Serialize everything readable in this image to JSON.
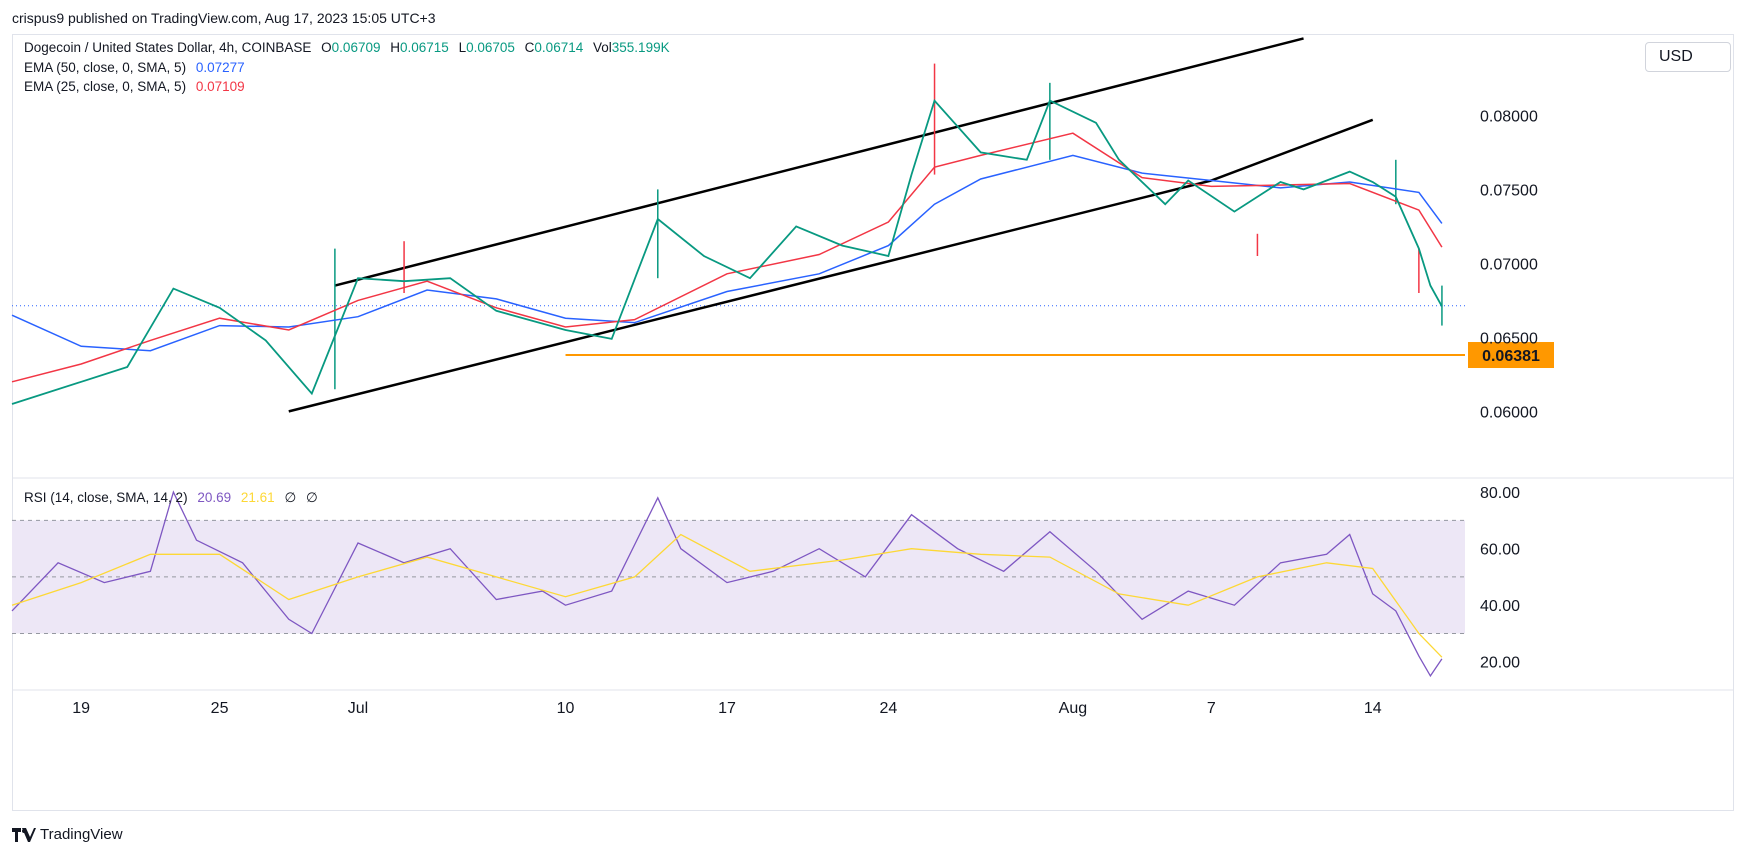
{
  "header": {
    "text": "crispus9 published on TradingView.com, Aug 17, 2023 15:05 UTC+3"
  },
  "legend": {
    "symbol": "Dogecoin / United States Dollar, 4h, COINBASE",
    "o_label": "O",
    "o": "0.06709",
    "h_label": "H",
    "h": "0.06715",
    "l_label": "L",
    "l": "0.06705",
    "c_label": "C",
    "c": "0.06714",
    "vol_label": "Vol",
    "vol": "355.199K",
    "ema50_label": "EMA (50, close, 0, SMA, 5)",
    "ema50_value": "0.07277",
    "ema25_label": "EMA (25, close, 0, SMA, 5)",
    "ema25_value": "0.07109",
    "rsi_label": "RSI (14, close, SMA, 14, 2)",
    "rsi_value": "20.69",
    "rsi_sma_value": "21.61",
    "rsi_extra1": "∅",
    "rsi_extra2": "∅"
  },
  "currency_button": "USD",
  "footer": {
    "brand": "TradingView"
  },
  "colors": {
    "up": "#089981",
    "down": "#f23645",
    "ema50": "#2962ff",
    "ema25": "#f23645",
    "support": "#ff9800",
    "rsi": "#7e57c2",
    "rsi_sma": "#fdd835",
    "rsi_band": "#ede7f6"
  },
  "chart_data": [
    {
      "type": "candlestick",
      "title": "Dogecoin / United States Dollar, 4h, COINBASE",
      "x_ticks": [
        "19",
        "25",
        "Jul",
        "10",
        "17",
        "24",
        "Aug",
        "7",
        "14"
      ],
      "x_tick_dates": [
        "2023-06-19",
        "2023-06-25",
        "2023-07-01",
        "2023-07-10",
        "2023-07-17",
        "2023-07-24",
        "2023-08-01",
        "2023-08-07",
        "2023-08-14"
      ],
      "y_ticks": [
        "0.08000",
        "0.07500",
        "0.07000",
        "0.06500",
        "0.06000"
      ],
      "ylim": [
        0.0555,
        0.0855
      ],
      "x_range": [
        "2023-06-16",
        "2023-08-18"
      ],
      "current_price": 0.06714,
      "support_level": {
        "value": 0.06381,
        "label": "0.06381",
        "from_date": "2023-07-10"
      },
      "channel_lines": [
        {
          "name": "",
          "start": {
            "date": "2023-06-28",
            "value": 0.06
          },
          "end": {
            "date": "2023-08-07",
            "value": 0.0756
          }
        },
        {
          "name": "",
          "start": {
            "date": "2023-06-30",
            "value": 0.0685
          },
          "end": {
            "date": "2023-08-11",
            "value": 0.0852
          }
        },
        {
          "name": "",
          "start": {
            "date": "2023-08-07",
            "value": 0.0756
          },
          "end": {
            "date": "2023-08-14",
            "value": 0.0797
          }
        }
      ],
      "series": [
        {
          "name": "EMA (50, close, 0, SMA, 5)",
          "color": "#2962ff",
          "points": [
            [
              "2023-06-16",
              0.0665
            ],
            [
              "2023-06-19",
              0.0644
            ],
            [
              "2023-06-22",
              0.0641
            ],
            [
              "2023-06-25",
              0.0658
            ],
            [
              "2023-06-28",
              0.0657
            ],
            [
              "2023-07-01",
              0.0664
            ],
            [
              "2023-07-04",
              0.0682
            ],
            [
              "2023-07-07",
              0.0676
            ],
            [
              "2023-07-10",
              0.0663
            ],
            [
              "2023-07-13",
              0.066
            ],
            [
              "2023-07-17",
              0.0681
            ],
            [
              "2023-07-21",
              0.0693
            ],
            [
              "2023-07-24",
              0.0712
            ],
            [
              "2023-07-26",
              0.074
            ],
            [
              "2023-07-28",
              0.0757
            ],
            [
              "2023-08-01",
              0.0773
            ],
            [
              "2023-08-04",
              0.0761
            ],
            [
              "2023-08-07",
              0.0756
            ],
            [
              "2023-08-10",
              0.0751
            ],
            [
              "2023-08-13",
              0.0755
            ],
            [
              "2023-08-16",
              0.0748
            ],
            [
              "2023-08-17",
              0.0727
            ]
          ]
        },
        {
          "name": "EMA (25, close, 0, SMA, 5)",
          "color": "#f23645",
          "points": [
            [
              "2023-06-16",
              0.062
            ],
            [
              "2023-06-19",
              0.0632
            ],
            [
              "2023-06-22",
              0.0648
            ],
            [
              "2023-06-25",
              0.0663
            ],
            [
              "2023-06-28",
              0.0655
            ],
            [
              "2023-07-01",
              0.0675
            ],
            [
              "2023-07-04",
              0.0688
            ],
            [
              "2023-07-07",
              0.067
            ],
            [
              "2023-07-10",
              0.0657
            ],
            [
              "2023-07-13",
              0.0662
            ],
            [
              "2023-07-17",
              0.0693
            ],
            [
              "2023-07-21",
              0.0706
            ],
            [
              "2023-07-24",
              0.0728
            ],
            [
              "2023-07-26",
              0.0765
            ],
            [
              "2023-07-28",
              0.0773
            ],
            [
              "2023-08-01",
              0.0788
            ],
            [
              "2023-08-04",
              0.0758
            ],
            [
              "2023-08-07",
              0.0752
            ],
            [
              "2023-08-10",
              0.0753
            ],
            [
              "2023-08-13",
              0.0754
            ],
            [
              "2023-08-16",
              0.0736
            ],
            [
              "2023-08-17",
              0.0711
            ]
          ]
        },
        {
          "name": "",
          "color": "#089981",
          "points": [
            [
              "2023-06-16",
              0.0605
            ],
            [
              "2023-06-19",
              0.062
            ],
            [
              "2023-06-21",
              0.063
            ],
            [
              "2023-06-23",
              0.0683
            ],
            [
              "2023-06-25",
              0.067
            ],
            [
              "2023-06-27",
              0.0648
            ],
            [
              "2023-06-29",
              0.0612
            ],
            [
              "2023-07-01",
              0.069
            ],
            [
              "2023-07-03",
              0.0688
            ],
            [
              "2023-07-05",
              0.069
            ],
            [
              "2023-07-07",
              0.0668
            ],
            [
              "2023-07-10",
              0.0655
            ],
            [
              "2023-07-12",
              0.0649
            ],
            [
              "2023-07-14",
              0.073
            ],
            [
              "2023-07-16",
              0.0705
            ],
            [
              "2023-07-18",
              0.069
            ],
            [
              "2023-07-20",
              0.0725
            ],
            [
              "2023-07-22",
              0.0712
            ],
            [
              "2023-07-24",
              0.0705
            ],
            [
              "2023-07-25",
              0.076
            ],
            [
              "2023-07-26",
              0.081
            ],
            [
              "2023-07-28",
              0.0775
            ],
            [
              "2023-07-30",
              0.077
            ],
            [
              "2023-07-31",
              0.081
            ],
            [
              "2023-08-02",
              0.0795
            ],
            [
              "2023-08-03",
              0.077
            ],
            [
              "2023-08-05",
              0.074
            ],
            [
              "2023-08-06",
              0.0756
            ],
            [
              "2023-08-08",
              0.0735
            ],
            [
              "2023-08-10",
              0.0755
            ],
            [
              "2023-08-11",
              0.075
            ],
            [
              "2023-08-13",
              0.0762
            ],
            [
              "2023-08-14",
              0.0755
            ],
            [
              "2023-08-15",
              0.0745
            ],
            [
              "2023-08-16",
              0.071
            ],
            [
              "2023-08-16T12",
              0.0685
            ],
            [
              "2023-08-17",
              0.0671
            ]
          ]
        }
      ],
      "candle_wicks": [
        {
          "date": "2023-06-30",
          "high": 0.071,
          "low": 0.0615
        },
        {
          "date": "2023-07-03",
          "high": 0.0715,
          "low": 0.068
        },
        {
          "date": "2023-07-14",
          "high": 0.075,
          "low": 0.069
        },
        {
          "date": "2023-07-26",
          "high": 0.0835,
          "low": 0.076
        },
        {
          "date": "2023-07-31",
          "high": 0.0822,
          "low": 0.077
        },
        {
          "date": "2023-08-09",
          "high": 0.072,
          "low": 0.0705
        },
        {
          "date": "2023-08-15",
          "high": 0.077,
          "low": 0.074
        },
        {
          "date": "2023-08-16",
          "high": 0.071,
          "low": 0.068
        },
        {
          "date": "2023-08-17",
          "high": 0.0685,
          "low": 0.0658
        }
      ]
    },
    {
      "type": "line",
      "title": "RSI (14, close, SMA, 14, 2)",
      "y_ticks": [
        "80.00",
        "60.00",
        "40.00",
        "20.00"
      ],
      "ylim": [
        10,
        85
      ],
      "band": [
        30,
        70
      ],
      "midline": 50,
      "series": [
        {
          "name": "RSI",
          "color": "#7e57c2",
          "points": [
            [
              "2023-06-16",
              38
            ],
            [
              "2023-06-18",
              55
            ],
            [
              "2023-06-20",
              48
            ],
            [
              "2023-06-22",
              52
            ],
            [
              "2023-06-23",
              80
            ],
            [
              "2023-06-24",
              63
            ],
            [
              "2023-06-26",
              55
            ],
            [
              "2023-06-28",
              35
            ],
            [
              "2023-06-29",
              30
            ],
            [
              "2023-07-01",
              62
            ],
            [
              "2023-07-03",
              55
            ],
            [
              "2023-07-05",
              60
            ],
            [
              "2023-07-07",
              42
            ],
            [
              "2023-07-09",
              45
            ],
            [
              "2023-07-10",
              40
            ],
            [
              "2023-07-12",
              45
            ],
            [
              "2023-07-14",
              78
            ],
            [
              "2023-07-15",
              60
            ],
            [
              "2023-07-17",
              48
            ],
            [
              "2023-07-19",
              52
            ],
            [
              "2023-07-21",
              60
            ],
            [
              "2023-07-23",
              50
            ],
            [
              "2023-07-25",
              72
            ],
            [
              "2023-07-27",
              60
            ],
            [
              "2023-07-29",
              52
            ],
            [
              "2023-07-31",
              66
            ],
            [
              "2023-08-02",
              52
            ],
            [
              "2023-08-04",
              35
            ],
            [
              "2023-08-06",
              45
            ],
            [
              "2023-08-08",
              40
            ],
            [
              "2023-08-10",
              55
            ],
            [
              "2023-08-12",
              58
            ],
            [
              "2023-08-13",
              65
            ],
            [
              "2023-08-14",
              44
            ],
            [
              "2023-08-15",
              38
            ],
            [
              "2023-08-16",
              22
            ],
            [
              "2023-08-16T12",
              15
            ],
            [
              "2023-08-17",
              21
            ]
          ]
        },
        {
          "name": "RSI SMA",
          "color": "#fdd835",
          "points": [
            [
              "2023-06-16",
              40
            ],
            [
              "2023-06-19",
              48
            ],
            [
              "2023-06-22",
              58
            ],
            [
              "2023-06-25",
              58
            ],
            [
              "2023-06-28",
              42
            ],
            [
              "2023-07-01",
              50
            ],
            [
              "2023-07-04",
              57
            ],
            [
              "2023-07-07",
              50
            ],
            [
              "2023-07-10",
              43
            ],
            [
              "2023-07-13",
              50
            ],
            [
              "2023-07-15",
              65
            ],
            [
              "2023-07-18",
              52
            ],
            [
              "2023-07-22",
              56
            ],
            [
              "2023-07-25",
              60
            ],
            [
              "2023-07-28",
              58
            ],
            [
              "2023-07-31",
              57
            ],
            [
              "2023-08-03",
              44
            ],
            [
              "2023-08-06",
              40
            ],
            [
              "2023-08-09",
              50
            ],
            [
              "2023-08-12",
              55
            ],
            [
              "2023-08-14",
              53
            ],
            [
              "2023-08-16",
              30
            ],
            [
              "2023-08-17",
              21.6
            ]
          ]
        }
      ]
    }
  ]
}
